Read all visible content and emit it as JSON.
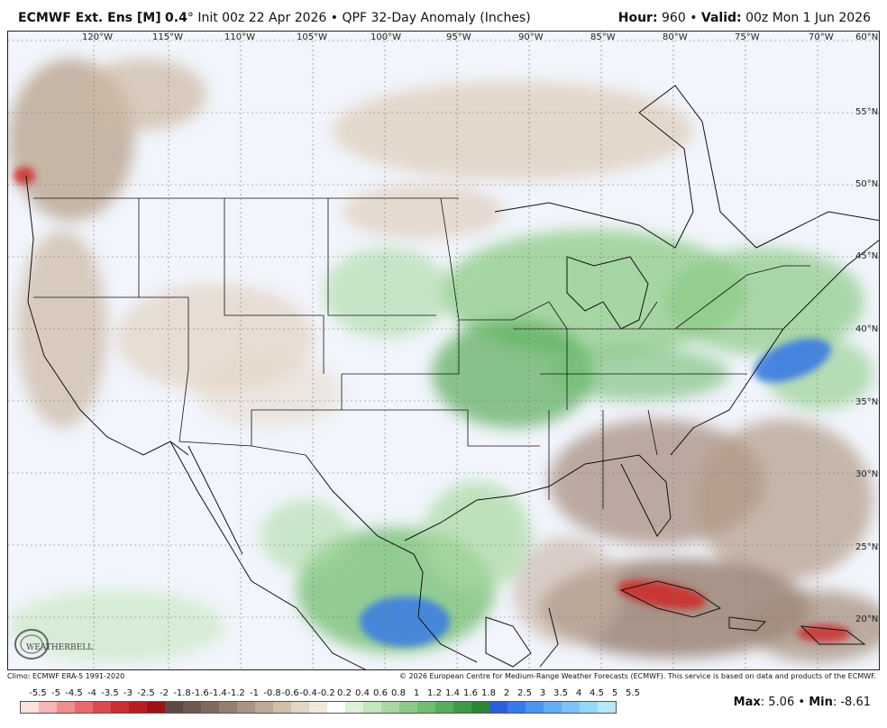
{
  "header": {
    "model": "ECMWF Ext. Ens [M]",
    "resolution": "0.4",
    "degree": "°",
    "init": "Init 00z 22 Apr 2026",
    "bullet": "•",
    "product": "QPF 32-Day Anomaly (Inches)",
    "hour_label": "Hour:",
    "hour_value": "960",
    "valid_label": "Valid:",
    "valid_value": "00z Mon 1 Jun 2026"
  },
  "map": {
    "lon_labels": [
      "120°W",
      "115°W",
      "110°W",
      "105°W",
      "100°W",
      "95°W",
      "90°W",
      "85°W",
      "80°W",
      "75°W",
      "70°W"
    ],
    "lat_labels": [
      "60°N",
      "55°N",
      "50°N",
      "45°N",
      "40°N",
      "35°N",
      "30°N",
      "25°N",
      "20°N"
    ],
    "logo_text": "WEATHERBELL"
  },
  "footer": {
    "climo": "Climo: ECMWF ERA-5 1991-2020",
    "copyright": "© 2026 European Centre for Medium-Range Weather Forecasts (ECMWF). This service is based on data and products of the ECMWF."
  },
  "colorbar": {
    "ticks": [
      "-5.5",
      "-5",
      "-4.5",
      "-4",
      "-3.5",
      "-3",
      "-2.5",
      "-2",
      "-1.8",
      "-1.6",
      "-1.4",
      "-1.2",
      "-1",
      "-0.8",
      "-0.6",
      "-0.4",
      "-0.2",
      "0.2",
      "0.4",
      "0.6",
      "0.8",
      "1",
      "1.2",
      "1.4",
      "1.6",
      "1.8",
      "2",
      "2.5",
      "3",
      "3.5",
      "4",
      "4.5",
      "5",
      "5.5"
    ],
    "colors": [
      "#fde0e0",
      "#f6b6b6",
      "#ee8f8f",
      "#e56b6b",
      "#da4b4b",
      "#cc2f2f",
      "#b81e1e",
      "#9a1414",
      "#5e4a42",
      "#6e5a50",
      "#806a5e",
      "#94806f",
      "#a99483",
      "#bda995",
      "#d1bfaa",
      "#e4d5c2",
      "#f1e9de",
      "#ffffff",
      "#dff0d8",
      "#c4e6bd",
      "#a8d9a1",
      "#8ccb86",
      "#72bd6f",
      "#58ad5a",
      "#409a47",
      "#2d8638",
      "#2f5fd8",
      "#3a7ae6",
      "#4c95ef",
      "#62adf4",
      "#7cc3f7",
      "#98d7fa",
      "#b6e8fc"
    ]
  },
  "stats": {
    "max_label": "Max",
    "max_value": ": 5.06",
    "sep": "•",
    "min_label": "Min",
    "min_value": ": -8.61"
  }
}
